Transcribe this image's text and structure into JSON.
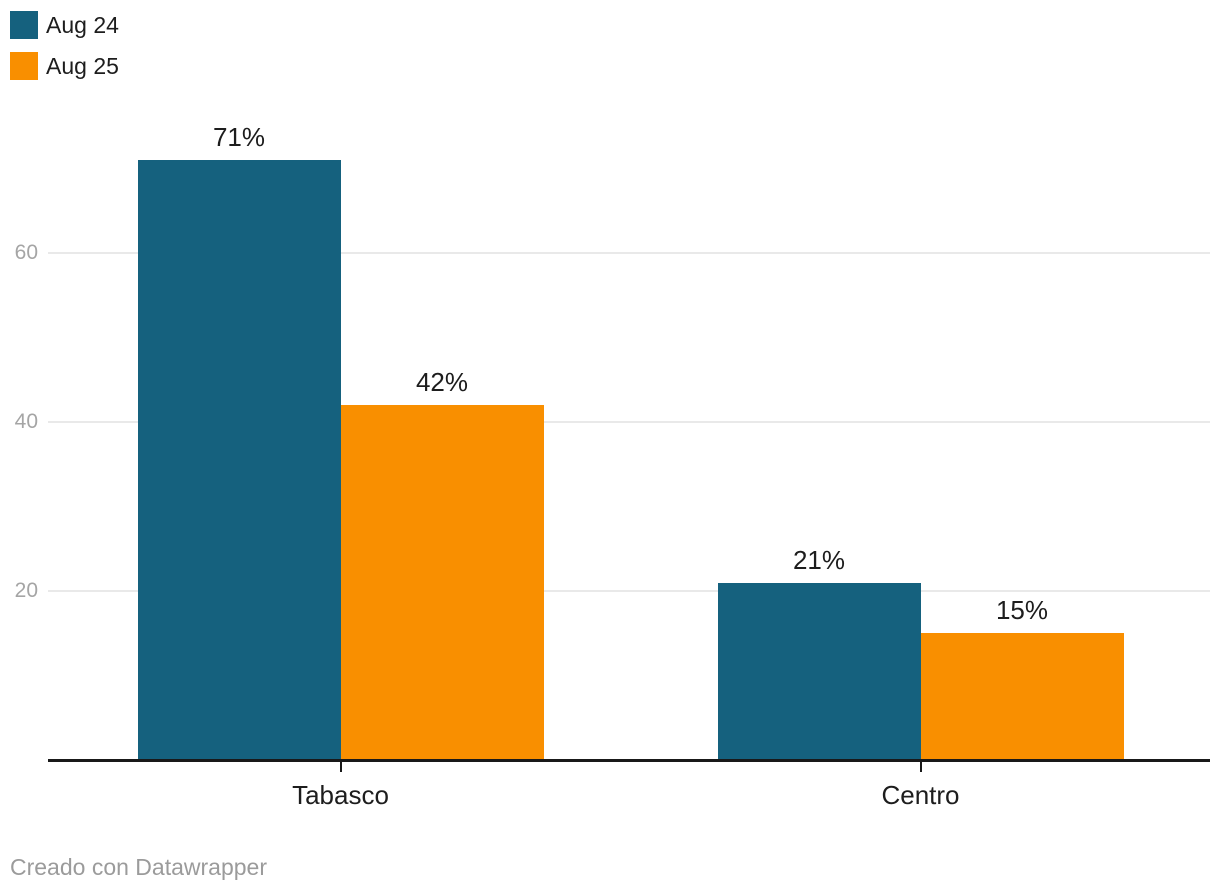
{
  "legend": {
    "items": [
      {
        "label": "Aug 24",
        "color": "#15617e"
      },
      {
        "label": "Aug 25",
        "color": "#f98f00"
      }
    ]
  },
  "footer": {
    "credit": "Creado con Datawrapper"
  },
  "colors": {
    "series_aug24": "#15617e",
    "series_aug25": "#f98f00",
    "gridline": "#e9e9e9",
    "axis_line": "#191919",
    "ytick_label": "#a5a5a5",
    "value_label": "#1d1d1d",
    "footer_text": "#9b9b9b",
    "background": "#ffffff"
  },
  "chart_data": {
    "type": "bar",
    "categories": [
      "Tabasco",
      "Centro"
    ],
    "series": [
      {
        "name": "Aug 24",
        "color": "#15617e",
        "values": [
          71,
          21
        ],
        "labels": [
          "71%",
          "21%"
        ]
      },
      {
        "name": "Aug 25",
        "color": "#f98f00",
        "values": [
          42,
          15
        ],
        "labels": [
          "42%",
          "15%"
        ]
      }
    ],
    "unit": "%",
    "yticks": [
      20,
      40,
      60
    ],
    "ylim": [
      0,
      75
    ],
    "grid": true,
    "legend_position": "top-left"
  }
}
